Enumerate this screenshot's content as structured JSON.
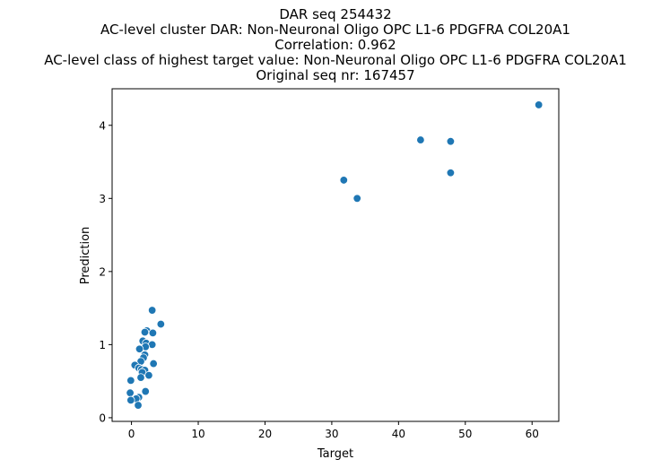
{
  "chart_data": {
    "type": "scatter",
    "title_lines": [
      "DAR seq 254432",
      "AC-level cluster DAR: Non-Neuronal Oligo OPC L1-6 PDGFRA COL20A1",
      "Correlation: 0.962",
      "AC-level class of highest target value: Non-Neuronal Oligo OPC L1-6 PDGFRA COL20A1",
      "Original seq nr: 167457"
    ],
    "xlabel": "Target",
    "ylabel": "Prediction",
    "xlim": [
      -2.9,
      64.0
    ],
    "ylim": [
      -0.05,
      4.5
    ],
    "xticks": [
      0,
      10,
      20,
      30,
      40,
      50,
      60
    ],
    "yticks": [
      0,
      1,
      2,
      3,
      4
    ],
    "grid": false,
    "color": "#1f77b4",
    "points": [
      {
        "x": 61.0,
        "y": 4.28
      },
      {
        "x": 43.3,
        "y": 3.8
      },
      {
        "x": 47.8,
        "y": 3.78
      },
      {
        "x": 47.8,
        "y": 3.35
      },
      {
        "x": 31.8,
        "y": 3.25
      },
      {
        "x": 33.8,
        "y": 3.0
      },
      {
        "x": 3.1,
        "y": 1.47
      },
      {
        "x": 4.4,
        "y": 1.28
      },
      {
        "x": 2.3,
        "y": 1.19
      },
      {
        "x": 2.0,
        "y": 1.17
      },
      {
        "x": 3.2,
        "y": 1.16
      },
      {
        "x": 1.7,
        "y": 1.05
      },
      {
        "x": 2.2,
        "y": 1.02
      },
      {
        "x": 3.1,
        "y": 1.0
      },
      {
        "x": 2.1,
        "y": 0.97
      },
      {
        "x": 1.2,
        "y": 0.94
      },
      {
        "x": 2.0,
        "y": 0.86
      },
      {
        "x": 1.8,
        "y": 0.82
      },
      {
        "x": 1.4,
        "y": 0.77
      },
      {
        "x": 3.3,
        "y": 0.74
      },
      {
        "x": 0.5,
        "y": 0.72
      },
      {
        "x": 1.1,
        "y": 0.68
      },
      {
        "x": 1.5,
        "y": 0.66
      },
      {
        "x": 2.0,
        "y": 0.65
      },
      {
        "x": 1.6,
        "y": 0.62
      },
      {
        "x": 2.6,
        "y": 0.58
      },
      {
        "x": 1.4,
        "y": 0.55
      },
      {
        "x": -0.1,
        "y": 0.51
      },
      {
        "x": 2.1,
        "y": 0.36
      },
      {
        "x": -0.2,
        "y": 0.34
      },
      {
        "x": 1.1,
        "y": 0.28
      },
      {
        "x": 0.7,
        "y": 0.26
      },
      {
        "x": -0.1,
        "y": 0.24
      },
      {
        "x": 1.0,
        "y": 0.17
      }
    ]
  }
}
